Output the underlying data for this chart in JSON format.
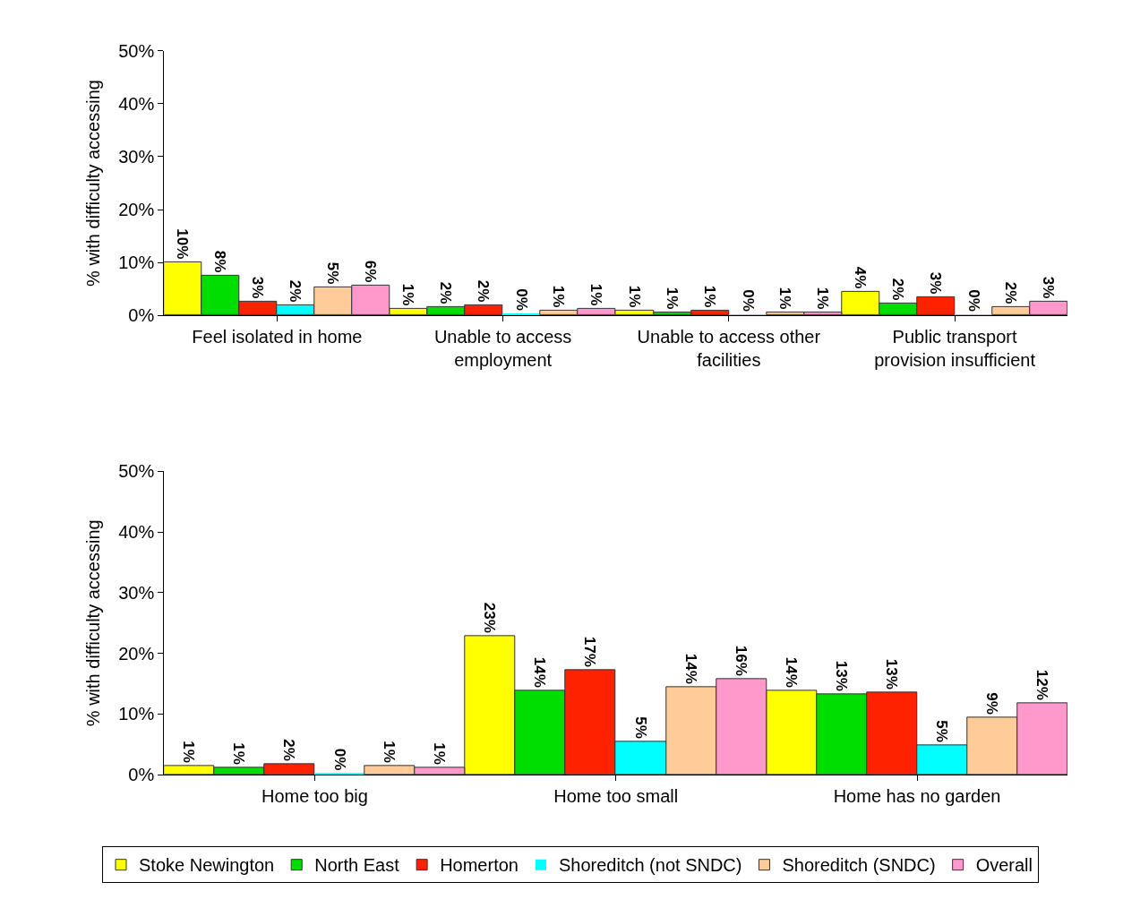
{
  "chart_data": [
    {
      "type": "bar",
      "ylabel": "% with difficulty accessing",
      "categories": [
        "Feel isolated in home",
        "Unable to access employment",
        "Unable to access other facilities",
        "Public transport provision insufficient"
      ],
      "series": [
        {
          "color": "#ffff00",
          "values": [
            10,
            1.2,
            0.9,
            4.4
          ],
          "value_labels": [
            "10%",
            "1%",
            "1%",
            "4%"
          ]
        },
        {
          "color": "#00dd00",
          "values": [
            7.5,
            1.5,
            0.6,
            2.2
          ],
          "value_labels": [
            "8%",
            "2%",
            "1%",
            "2%"
          ]
        },
        {
          "color": "#ff2200",
          "values": [
            2.5,
            1.9,
            0.9,
            3.4
          ],
          "value_labels": [
            "3%",
            "2%",
            "1%",
            "3%"
          ]
        },
        {
          "color": "#00ffff",
          "values": [
            1.9,
            0.3,
            0.1,
            0.1
          ],
          "value_labels": [
            "2%",
            "0%",
            "0%",
            "0%"
          ]
        },
        {
          "color": "#ffcc99",
          "values": [
            5.3,
            0.9,
            0.6,
            1.5
          ],
          "value_labels": [
            "5%",
            "1%",
            "1%",
            "2%"
          ]
        },
        {
          "color": "#ff99cc",
          "values": [
            5.6,
            1.2,
            0.6,
            2.5
          ],
          "value_labels": [
            "6%",
            "1%",
            "1%",
            "3%"
          ]
        }
      ],
      "ylim": [
        0,
        50
      ],
      "yticks": [
        {
          "value": 0,
          "label": "0%"
        },
        {
          "value": 10,
          "label": "10%"
        },
        {
          "value": 20,
          "label": "20%"
        },
        {
          "value": 30,
          "label": "30%"
        },
        {
          "value": 40,
          "label": "40%"
        },
        {
          "value": 50,
          "label": "50%"
        }
      ],
      "legend": false
    },
    {
      "type": "bar",
      "ylabel": "% with difficulty accessing",
      "categories": [
        "Home too big",
        "Home too small",
        "Home has no garden"
      ],
      "series": [
        {
          "name": "Stoke Newington",
          "color": "#ffff00",
          "values": [
            1.4,
            22.8,
            13.8
          ],
          "value_labels": [
            "1%",
            "23%",
            "14%"
          ]
        },
        {
          "name": "North East",
          "color": "#00dd00",
          "values": [
            1.1,
            13.8,
            13.2
          ],
          "value_labels": [
            "1%",
            "14%",
            "13%"
          ]
        },
        {
          "name": "Homerton",
          "color": "#ff2200",
          "values": [
            1.7,
            17.2,
            13.5
          ],
          "value_labels": [
            "2%",
            "17%",
            "13%"
          ]
        },
        {
          "name": "Shoreditch (not SNDC)",
          "color": "#00ffff",
          "values": [
            0.3,
            5.4,
            4.8
          ],
          "value_labels": [
            "0%",
            "5%",
            "5%"
          ]
        },
        {
          "name": "Shoreditch (SNDC)",
          "color": "#ffcc99",
          "values": [
            1.4,
            14.4,
            9.4
          ],
          "value_labels": [
            "1%",
            "14%",
            "9%"
          ]
        },
        {
          "name": "Overall",
          "color": "#ff99cc",
          "values": [
            1.1,
            15.8,
            11.8
          ],
          "value_labels": [
            "1%",
            "16%",
            "12%"
          ]
        }
      ],
      "ylim": [
        0,
        50
      ],
      "yticks": [
        {
          "value": 0,
          "label": "0%"
        },
        {
          "value": 10,
          "label": "10%"
        },
        {
          "value": 20,
          "label": "20%"
        },
        {
          "value": 30,
          "label": "30%"
        },
        {
          "value": 40,
          "label": "40%"
        },
        {
          "value": 50,
          "label": "50%"
        }
      ],
      "legend": "bottom"
    }
  ]
}
